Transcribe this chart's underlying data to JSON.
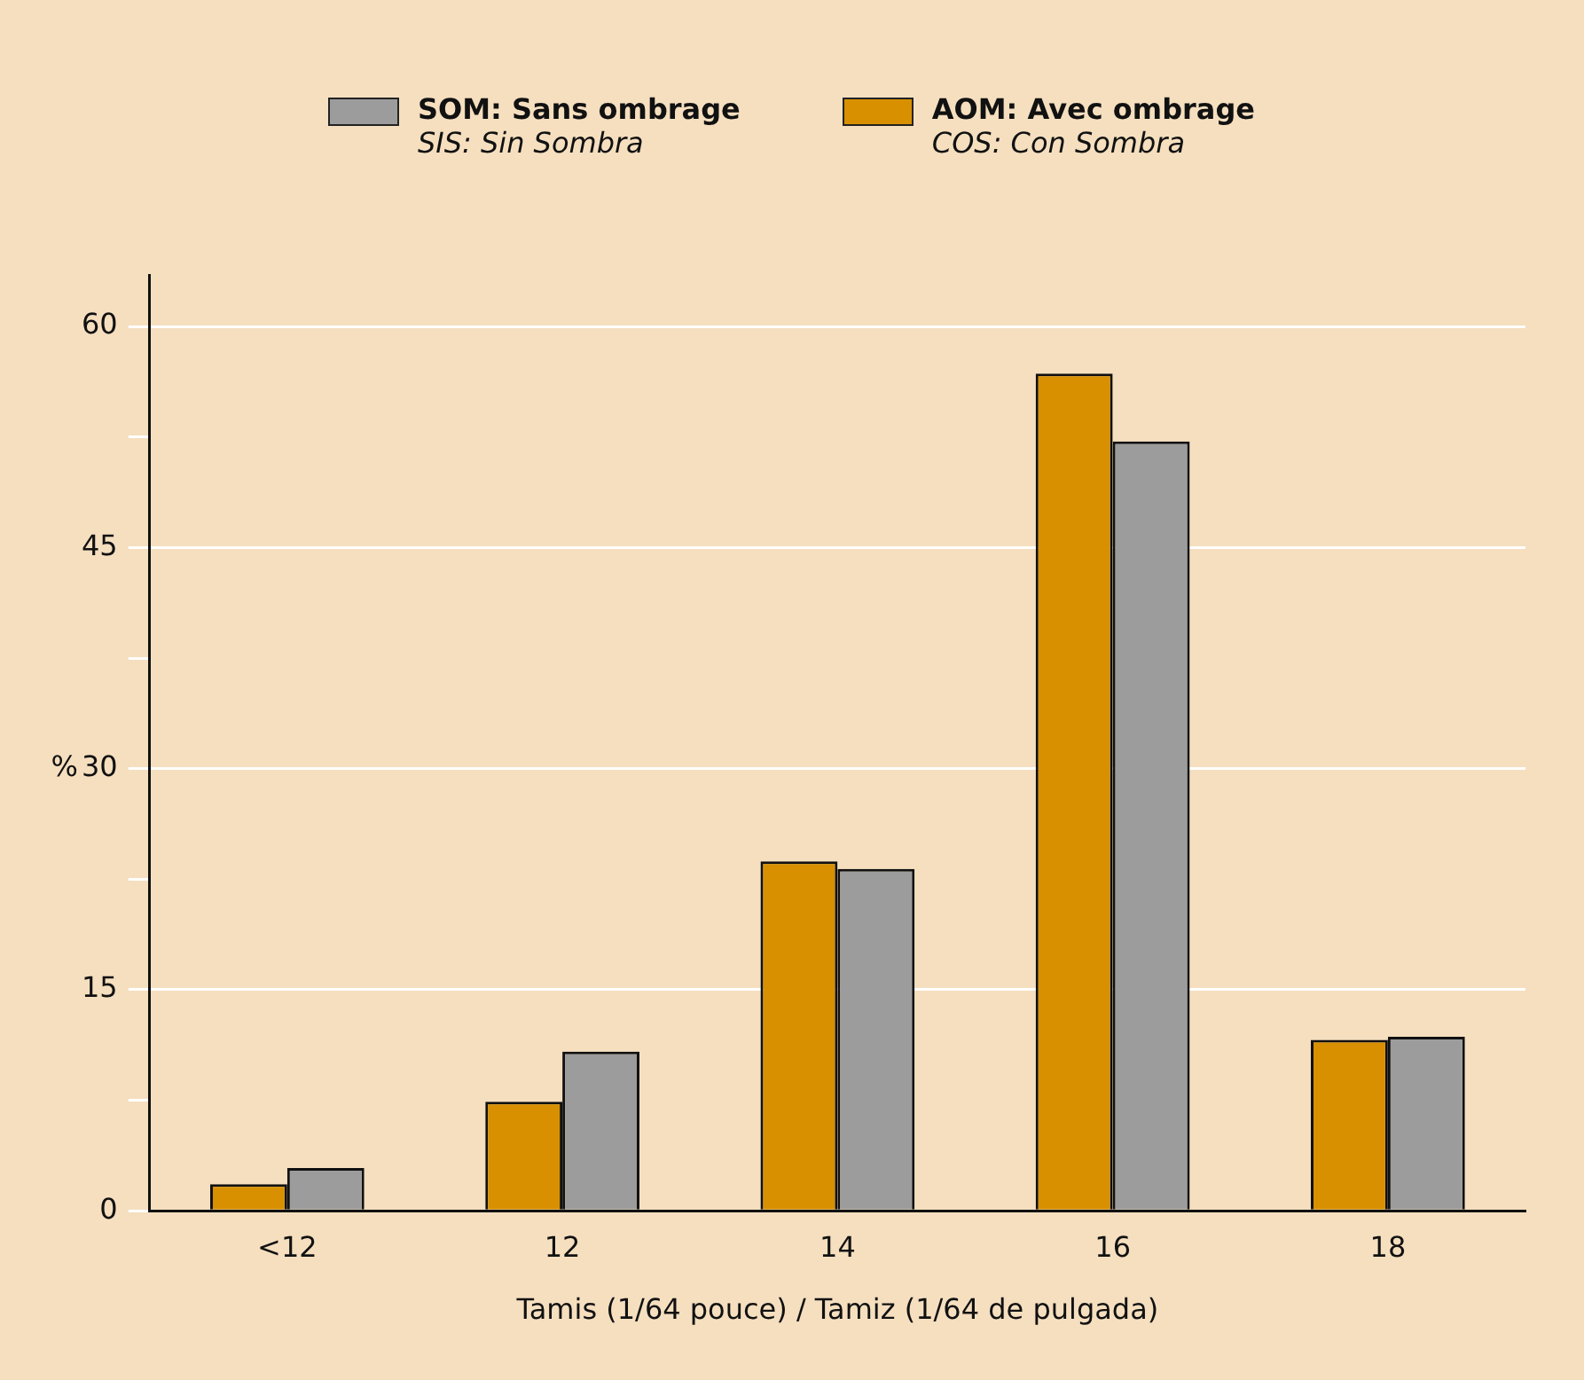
{
  "chart_data": {
    "type": "bar",
    "xlabel": "Tamis (1/64 pouce) / Tamiz (1/64 de pulgada)",
    "ylabel": "%",
    "categories": [
      "<12",
      "12",
      "14",
      "16",
      "18"
    ],
    "series": [
      {
        "name": "AOM: Avec ombrage\nCOS: Con Sombra",
        "color": "#d89000",
        "values": [
          1.8,
          7.4,
          23.7,
          56.8,
          11.6
        ]
      },
      {
        "name": "SOM: Sans ombrage\nSIS: Sin Sombra",
        "color": "#9c9c9c",
        "values": [
          2.9,
          10.8,
          23.2,
          52.2,
          11.8
        ]
      }
    ],
    "ylim": [
      0,
      63.5
    ],
    "yticks": [
      0,
      {
        "value": 7.5,
        "label": null
      },
      15,
      {
        "value": 22.5,
        "label": null
      },
      30,
      {
        "value": 37.5,
        "label": null
      },
      45,
      {
        "value": 52.5,
        "label": null
      },
      60
    ],
    "grid": "y",
    "legend": "top"
  }
}
